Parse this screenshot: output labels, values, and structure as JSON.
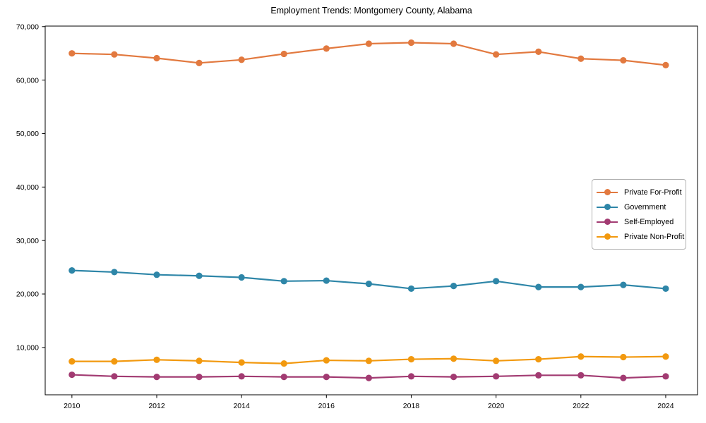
{
  "chart_data": {
    "type": "line",
    "title": "Employment Trends: Montgomery County, Alabama",
    "xlabel": "",
    "ylabel": "",
    "x": [
      2010,
      2011,
      2012,
      2013,
      2014,
      2015,
      2016,
      2017,
      2018,
      2019,
      2020,
      2021,
      2022,
      2023,
      2024
    ],
    "series": [
      {
        "name": "Private For-Profit",
        "color": "#E2793F",
        "values": [
          65000,
          64800,
          64100,
          63200,
          63800,
          64900,
          65900,
          66800,
          67000,
          66800,
          64800,
          65300,
          64000,
          63700,
          62800
        ]
      },
      {
        "name": "Government",
        "color": "#2E86A8",
        "values": [
          24400,
          24100,
          23600,
          23400,
          23100,
          22400,
          22500,
          21900,
          21000,
          21500,
          22400,
          21300,
          21300,
          21700,
          21000
        ]
      },
      {
        "name": "Self-Employed",
        "color": "#A23B72",
        "values": [
          4900,
          4600,
          4500,
          4500,
          4600,
          4500,
          4500,
          4300,
          4600,
          4500,
          4600,
          4800,
          4800,
          4300,
          4600
        ]
      },
      {
        "name": "Private Non-Profit",
        "color": "#F2990F",
        "values": [
          7400,
          7400,
          7700,
          7500,
          7200,
          7000,
          7600,
          7500,
          7800,
          7900,
          7500,
          7800,
          8300,
          8200,
          8300
        ]
      }
    ],
    "xticks": [
      2010,
      2012,
      2014,
      2016,
      2018,
      2020,
      2022,
      2024
    ],
    "xtick_labels": [
      "2010",
      "2012",
      "2014",
      "2016",
      "2018",
      "2020",
      "2022",
      "2024"
    ],
    "yticks": [
      10000,
      20000,
      30000,
      40000,
      50000,
      60000,
      70000
    ],
    "ytick_labels": [
      "10,000",
      "20,000",
      "30,000",
      "40,000",
      "50,000",
      "60,000",
      "70,000"
    ],
    "xlim": [
      2009.37,
      2024.75
    ],
    "ylim": [
      1150,
      70100
    ],
    "grid": false,
    "legend_position": "center right",
    "axis_color": "#000000",
    "legend_border_color": "#b0b0b0"
  }
}
